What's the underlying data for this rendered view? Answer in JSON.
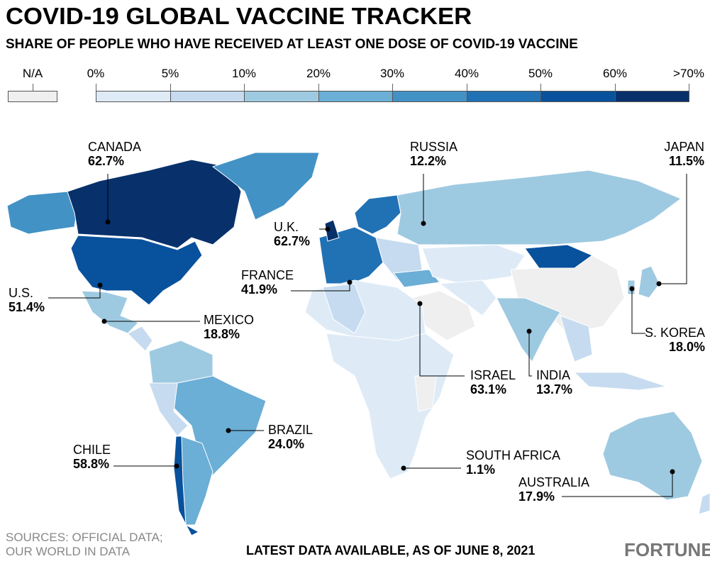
{
  "title": "COVID-19 GLOBAL VACCINE TRACKER",
  "subtitle": "SHARE OF PEOPLE WHO HAVE RECEIVED AT LEAST ONE DOSE OF COVID-19 VACCINE",
  "legend": {
    "na": {
      "label": "N/A",
      "color": "#efefef"
    },
    "ticks": [
      "0%",
      "5%",
      "10%",
      "20%",
      "30%",
      "40%",
      "50%",
      "60%",
      ">70%"
    ],
    "colors": [
      "#deebf7",
      "#c6dbef",
      "#9ecae1",
      "#6baed6",
      "#4292c6",
      "#2171b5",
      "#08519c",
      "#08306b"
    ]
  },
  "annotations": [
    {
      "name": "CANADA",
      "value": "62.7%"
    },
    {
      "name": "RUSSIA",
      "value": "12.2%"
    },
    {
      "name": "JAPAN",
      "value": "11.5%"
    },
    {
      "name": "U.K.",
      "value": "62.7%"
    },
    {
      "name": "FRANCE",
      "value": "41.9%"
    },
    {
      "name": "U.S.",
      "value": "51.4%"
    },
    {
      "name": "MEXICO",
      "value": "18.8%"
    },
    {
      "name": "S. KOREA",
      "value": "18.0%"
    },
    {
      "name": "ISRAEL",
      "value": "63.1%"
    },
    {
      "name": "INDIA",
      "value": "13.7%"
    },
    {
      "name": "BRAZIL",
      "value": "24.0%"
    },
    {
      "name": "CHILE",
      "value": "58.8%"
    },
    {
      "name": "SOUTH AFRICA",
      "value": "1.1%"
    },
    {
      "name": "AUSTRALIA",
      "value": "17.9%"
    }
  ],
  "sources": [
    "SOURCES: OFFICIAL DATA;",
    "OUR WORLD IN DATA"
  ],
  "footer": "LATEST DATA AVAILABLE, AS OF JUNE 8, 2021",
  "logo": "FORTUNE"
}
